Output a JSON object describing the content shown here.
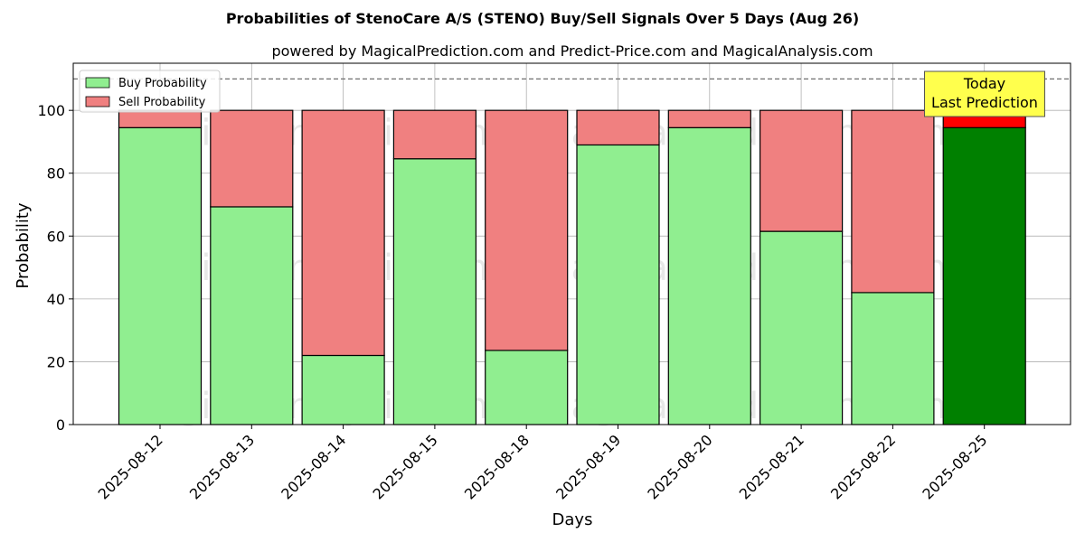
{
  "chart_data": {
    "type": "bar",
    "stacked": true,
    "title": "Probabilities of StenoCare A/S (STENO) Buy/Sell Signals Over 5 Days (Aug 26)",
    "subtitle": "powered by MagicalPrediction.com and Predict-Price.com and MagicalAnalysis.com",
    "xlabel": "Days",
    "ylabel": "Probability",
    "ylim": [
      0,
      115
    ],
    "yticks": [
      0,
      20,
      40,
      60,
      80,
      100
    ],
    "categories": [
      "2025-08-12",
      "2025-08-13",
      "2025-08-14",
      "2025-08-15",
      "2025-08-18",
      "2025-08-19",
      "2025-08-20",
      "2025-08-21",
      "2025-08-22",
      "2025-08-25"
    ],
    "series": [
      {
        "name": "Buy Probability",
        "values": [
          94.5,
          69.3,
          22.0,
          84.6,
          23.6,
          89.0,
          94.5,
          61.5,
          42.0,
          94.5
        ],
        "color": "#90ee90",
        "highlight_color": "#008000"
      },
      {
        "name": "Sell Probability",
        "values": [
          5.5,
          30.7,
          78.0,
          15.4,
          76.4,
          11.0,
          5.5,
          38.5,
          58.0,
          5.5
        ],
        "color": "#f08080",
        "highlight_color": "#ff0000"
      }
    ],
    "reference_line": 110,
    "grid": true,
    "legend_position": "top-left",
    "annotation": {
      "lines": [
        "Today",
        "Last Prediction"
      ],
      "background": "#ffff4d"
    },
    "watermarks": [
      "MagicalAnalysis.com",
      "MagicalPrediction.com"
    ]
  }
}
